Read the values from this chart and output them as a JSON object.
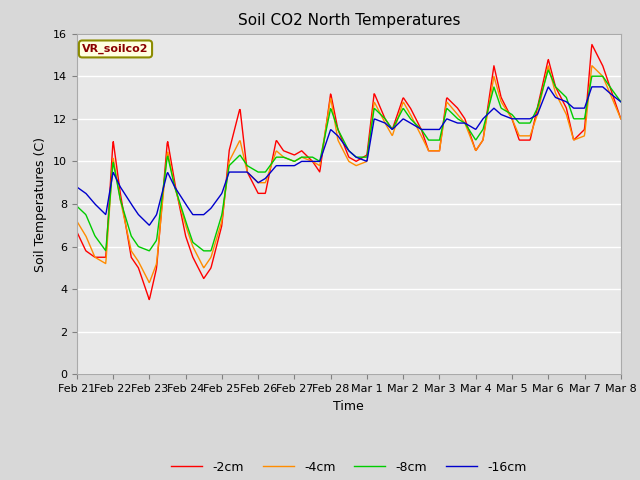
{
  "title": "Soil CO2 North Temperatures",
  "xlabel": "Time",
  "ylabel": "Soil Temperatures (C)",
  "ylim": [
    0,
    16
  ],
  "yticks": [
    0,
    2,
    4,
    6,
    8,
    10,
    12,
    14,
    16
  ],
  "legend_label": "VR_soilco2",
  "line_labels": [
    "-2cm",
    "-4cm",
    "-8cm",
    "-16cm"
  ],
  "line_colors": [
    "#FF0000",
    "#FF8C00",
    "#00CC00",
    "#0000CC"
  ],
  "x_tick_labels": [
    "Feb 21",
    "Feb 22",
    "Feb 23",
    "Feb 24",
    "Feb 25",
    "Feb 26",
    "Feb 27",
    "Feb 28",
    "Mar 1",
    "Mar 2",
    "Mar 3",
    "Mar 4",
    "Mar 5",
    "Mar 6",
    "Mar 7",
    "Mar 8"
  ],
  "fig_bg_color": "#D8D8D8",
  "plot_bg_color": "#E8E8E8",
  "title_fontsize": 11,
  "axis_label_fontsize": 9,
  "tick_fontsize": 8,
  "waypoints_2cm_x": [
    0,
    0.25,
    0.5,
    0.8,
    1.0,
    1.2,
    1.5,
    1.7,
    2.0,
    2.2,
    2.5,
    2.7,
    3.0,
    3.2,
    3.5,
    3.7,
    4.0,
    4.2,
    4.5,
    4.7,
    5.0,
    5.2,
    5.5,
    5.7,
    6.0,
    6.2,
    6.5,
    6.7,
    7.0,
    7.2,
    7.5,
    7.7,
    8.0,
    8.2,
    8.5,
    8.7,
    9.0,
    9.2,
    9.5,
    9.7,
    10.0,
    10.2,
    10.5,
    10.7,
    11.0,
    11.2,
    11.5,
    11.7,
    12.0,
    12.2,
    12.5,
    12.7,
    13.0,
    13.2,
    13.5,
    13.7,
    14.0,
    14.2,
    14.5,
    14.7,
    15.0
  ],
  "waypoints_2cm_y": [
    6.7,
    5.8,
    5.5,
    5.5,
    11.0,
    8.5,
    5.5,
    5.0,
    3.5,
    5.0,
    11.0,
    9.0,
    6.5,
    5.5,
    4.5,
    5.0,
    7.0,
    10.5,
    12.5,
    9.5,
    8.5,
    8.5,
    11.0,
    10.5,
    10.3,
    10.5,
    10.0,
    9.5,
    13.2,
    11.5,
    10.2,
    10.0,
    10.3,
    13.2,
    12.0,
    11.5,
    13.0,
    12.5,
    11.5,
    10.5,
    10.5,
    13.0,
    12.5,
    12.0,
    10.5,
    11.0,
    14.5,
    13.0,
    12.0,
    11.0,
    11.0,
    12.5,
    14.8,
    13.5,
    12.5,
    11.0,
    11.5,
    15.5,
    14.5,
    13.5,
    12.0
  ],
  "waypoints_4cm_x": [
    0,
    0.25,
    0.5,
    0.8,
    1.0,
    1.2,
    1.5,
    1.7,
    2.0,
    2.2,
    2.5,
    2.7,
    3.0,
    3.2,
    3.5,
    3.7,
    4.0,
    4.2,
    4.5,
    4.7,
    5.0,
    5.2,
    5.5,
    5.7,
    6.0,
    6.2,
    6.5,
    6.7,
    7.0,
    7.2,
    7.5,
    7.7,
    8.0,
    8.2,
    8.5,
    8.7,
    9.0,
    9.2,
    9.5,
    9.7,
    10.0,
    10.2,
    10.5,
    10.7,
    11.0,
    11.2,
    11.5,
    11.7,
    12.0,
    12.2,
    12.5,
    12.7,
    13.0,
    13.2,
    13.5,
    13.7,
    14.0,
    14.2,
    14.5,
    14.7,
    15.0
  ],
  "waypoints_4cm_y": [
    7.2,
    6.5,
    5.5,
    5.2,
    10.2,
    8.2,
    5.8,
    5.3,
    4.3,
    5.2,
    10.5,
    8.8,
    7.0,
    6.0,
    5.0,
    5.5,
    7.2,
    10.0,
    11.0,
    9.5,
    9.0,
    9.0,
    10.5,
    10.2,
    10.0,
    10.2,
    10.0,
    9.8,
    13.0,
    11.0,
    10.0,
    9.8,
    10.0,
    12.8,
    11.8,
    11.2,
    12.8,
    12.2,
    11.2,
    10.5,
    10.5,
    12.8,
    12.2,
    11.8,
    10.5,
    11.0,
    14.0,
    12.8,
    12.0,
    11.2,
    11.2,
    12.2,
    14.5,
    13.2,
    12.2,
    11.0,
    11.2,
    14.5,
    14.0,
    13.2,
    12.0
  ],
  "waypoints_8cm_x": [
    0,
    0.25,
    0.5,
    0.8,
    1.0,
    1.2,
    1.5,
    1.7,
    2.0,
    2.2,
    2.5,
    2.7,
    3.0,
    3.2,
    3.5,
    3.7,
    4.0,
    4.2,
    4.5,
    4.7,
    5.0,
    5.2,
    5.5,
    5.7,
    6.0,
    6.2,
    6.5,
    6.7,
    7.0,
    7.2,
    7.5,
    7.7,
    8.0,
    8.2,
    8.5,
    8.7,
    9.0,
    9.2,
    9.5,
    9.7,
    10.0,
    10.2,
    10.5,
    10.7,
    11.0,
    11.2,
    11.5,
    11.7,
    12.0,
    12.2,
    12.5,
    12.7,
    13.0,
    13.2,
    13.5,
    13.7,
    14.0,
    14.2,
    14.5,
    14.7,
    15.0
  ],
  "waypoints_8cm_y": [
    7.9,
    7.5,
    6.5,
    5.8,
    10.0,
    8.2,
    6.5,
    6.0,
    5.8,
    6.3,
    10.3,
    8.8,
    7.2,
    6.2,
    5.8,
    5.8,
    7.5,
    9.8,
    10.3,
    9.8,
    9.5,
    9.5,
    10.2,
    10.2,
    10.0,
    10.2,
    10.2,
    10.0,
    12.5,
    11.5,
    10.5,
    10.2,
    10.2,
    12.5,
    12.0,
    11.5,
    12.5,
    12.0,
    11.5,
    11.0,
    11.0,
    12.5,
    12.0,
    11.8,
    11.0,
    11.5,
    13.5,
    12.5,
    12.2,
    11.8,
    11.8,
    12.5,
    14.3,
    13.5,
    13.0,
    12.0,
    12.0,
    14.0,
    14.0,
    13.5,
    12.8
  ],
  "waypoints_16cm_x": [
    0,
    0.25,
    0.5,
    0.8,
    1.0,
    1.2,
    1.5,
    1.7,
    2.0,
    2.2,
    2.5,
    2.7,
    3.0,
    3.2,
    3.5,
    3.7,
    4.0,
    4.2,
    4.5,
    4.7,
    5.0,
    5.2,
    5.5,
    5.7,
    6.0,
    6.2,
    6.5,
    6.7,
    7.0,
    7.2,
    7.5,
    7.7,
    8.0,
    8.2,
    8.5,
    8.7,
    9.0,
    9.2,
    9.5,
    9.7,
    10.0,
    10.2,
    10.5,
    10.7,
    11.0,
    11.2,
    11.5,
    11.7,
    12.0,
    12.2,
    12.5,
    12.7,
    13.0,
    13.2,
    13.5,
    13.7,
    14.0,
    14.2,
    14.5,
    14.7,
    15.0
  ],
  "waypoints_16cm_y": [
    8.8,
    8.5,
    8.0,
    7.5,
    9.5,
    8.8,
    8.0,
    7.5,
    7.0,
    7.5,
    9.5,
    8.8,
    8.0,
    7.5,
    7.5,
    7.8,
    8.5,
    9.5,
    9.5,
    9.5,
    9.0,
    9.2,
    9.8,
    9.8,
    9.8,
    10.0,
    10.0,
    10.0,
    11.5,
    11.2,
    10.5,
    10.2,
    10.0,
    12.0,
    11.8,
    11.5,
    12.0,
    11.8,
    11.5,
    11.5,
    11.5,
    12.0,
    11.8,
    11.8,
    11.5,
    12.0,
    12.5,
    12.2,
    12.0,
    12.0,
    12.0,
    12.2,
    13.5,
    13.0,
    12.8,
    12.5,
    12.5,
    13.5,
    13.5,
    13.2,
    12.8
  ]
}
